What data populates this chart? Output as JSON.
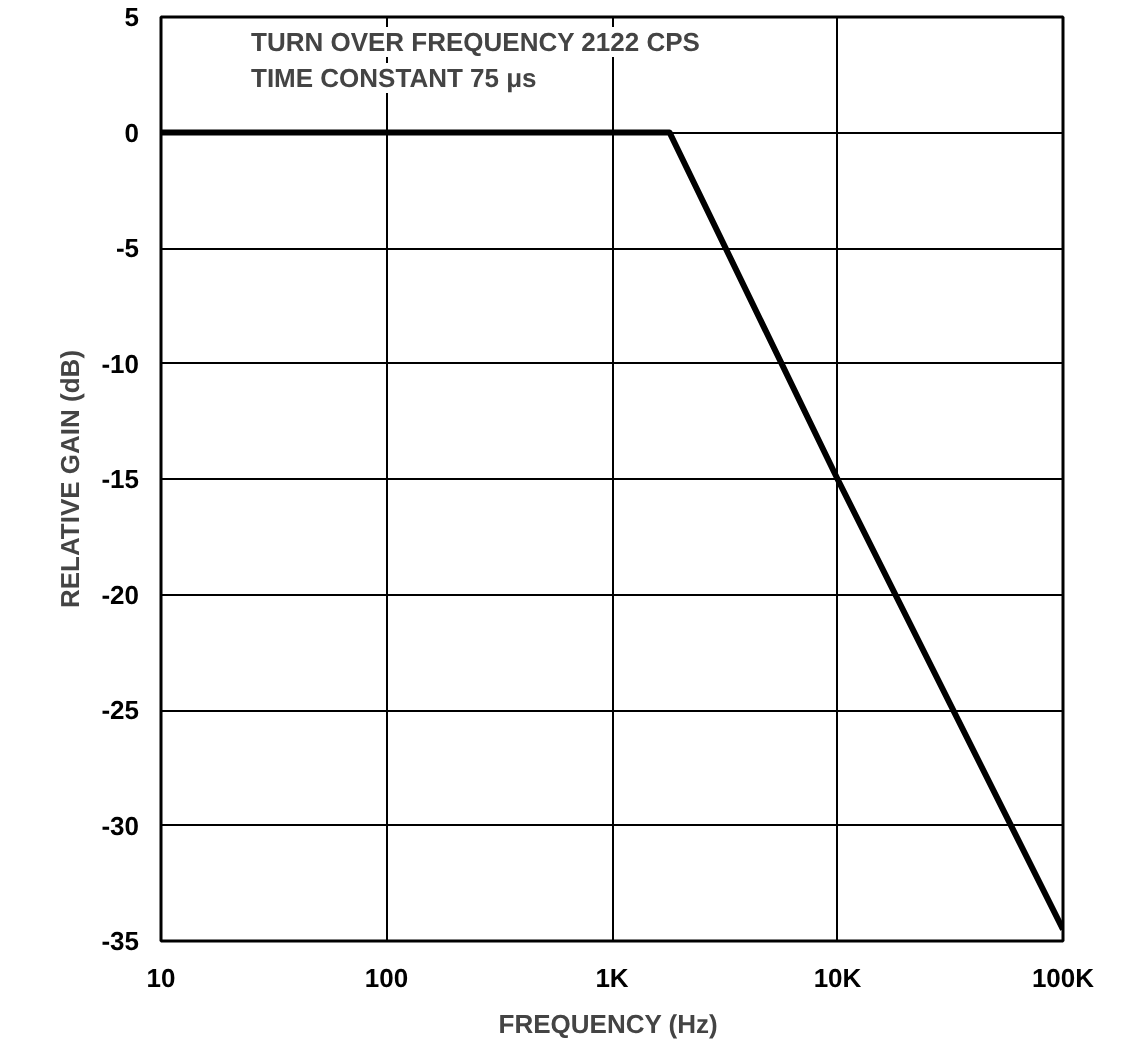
{
  "chart_data": {
    "type": "line",
    "xlabel": "FREQUENCY  (Hz)",
    "ylabel": "RELATIVE GAIN (dB)",
    "annotations": [
      "TURN OVER FREQUENCY 2122 CPS",
      "TIME CONSTANT 75 μs"
    ],
    "x": [
      10,
      1800,
      10000,
      100000
    ],
    "series": [
      {
        "color": "#000000",
        "values": [
          0,
          0,
          -15,
          -34.5
        ]
      }
    ],
    "log": "x",
    "xlim": [
      10,
      100000
    ],
    "ylim": [
      -35,
      5
    ],
    "xticks": [
      10,
      100,
      {
        "value": 1000,
        "label": "1K"
      },
      {
        "value": 10000,
        "label": "10K"
      },
      {
        "value": 100000,
        "label": "100K"
      }
    ],
    "yticks": [
      -35,
      -30,
      -25,
      -20,
      -15,
      -10,
      -5,
      0,
      5
    ],
    "grid": true,
    "marker": "none",
    "line_style": "solid"
  }
}
